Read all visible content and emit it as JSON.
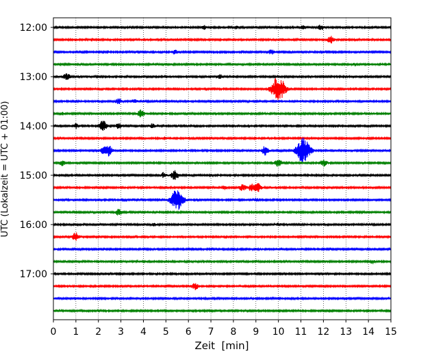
{
  "chart_data": {
    "type": "line",
    "title": "",
    "xlabel": "Zeit  [min]",
    "ylabel": "UTC (Lokalzeit = UTC + 01:00)",
    "xlim": [
      0,
      15
    ],
    "x_ticks": [
      "0",
      "1",
      "2",
      "3",
      "4",
      "5",
      "6",
      "7",
      "8",
      "9",
      "10",
      "11",
      "12",
      "13",
      "14",
      "15"
    ],
    "y_tick_labels": [
      "12:00",
      "13:00",
      "14:00",
      "15:00",
      "16:00",
      "17:00"
    ],
    "grid": "vertical dotted at each minute",
    "colors": [
      "#000000",
      "#ff0000",
      "#0000ff",
      "#008000"
    ],
    "traces": [
      {
        "start": "12:00",
        "color": "#000000",
        "events": [
          [
            6.7,
            0.4
          ],
          [
            8.1,
            0.35
          ],
          [
            11.1,
            0.5
          ],
          [
            11.9,
            0.7
          ]
        ]
      },
      {
        "start": "12:15",
        "color": "#ff0000",
        "events": [
          [
            1.7,
            0.3
          ],
          [
            12.3,
            0.9
          ]
        ]
      },
      {
        "start": "12:30",
        "color": "#0000ff",
        "events": [
          [
            5.4,
            0.5
          ],
          [
            9.7,
            0.6
          ]
        ]
      },
      {
        "start": "12:45",
        "color": "#008000",
        "events": [
          [
            13.4,
            0.3
          ]
        ]
      },
      {
        "start": "13:00",
        "color": "#000000",
        "events": [
          [
            0.6,
            0.8
          ],
          [
            7.4,
            0.5
          ]
        ]
      },
      {
        "start": "13:15",
        "color": "#ff0000",
        "events": [
          [
            10.0,
            3.0
          ]
        ]
      },
      {
        "start": "13:30",
        "color": "#0000ff",
        "events": [
          [
            2.9,
            0.7
          ],
          [
            3.6,
            0.4
          ]
        ]
      },
      {
        "start": "13:45",
        "color": "#008000",
        "events": [
          [
            3.9,
            0.9
          ],
          [
            0.4,
            0.3
          ]
        ]
      },
      {
        "start": "14:00",
        "color": "#000000",
        "events": [
          [
            1.0,
            0.6
          ],
          [
            2.2,
            1.2
          ],
          [
            2.9,
            0.6
          ],
          [
            4.4,
            0.5
          ]
        ]
      },
      {
        "start": "14:15",
        "color": "#ff0000",
        "events": [
          [
            4.9,
            0.3
          ]
        ]
      },
      {
        "start": "14:30",
        "color": "#0000ff",
        "events": [
          [
            2.3,
            1.2
          ],
          [
            2.5,
            0.8
          ],
          [
            9.4,
            1.0
          ],
          [
            11.1,
            3.0
          ]
        ]
      },
      {
        "start": "14:45",
        "color": "#008000",
        "events": [
          [
            0.4,
            0.6
          ],
          [
            10.0,
            0.9
          ],
          [
            12.0,
            0.8
          ]
        ]
      },
      {
        "start": "15:00",
        "color": "#000000",
        "events": [
          [
            5.4,
            1.1
          ],
          [
            4.9,
            0.6
          ]
        ]
      },
      {
        "start": "15:15",
        "color": "#ff0000",
        "events": [
          [
            7.6,
            0.6
          ],
          [
            8.4,
            0.8
          ],
          [
            8.8,
            0.8
          ],
          [
            9.1,
            1.0
          ]
        ]
      },
      {
        "start": "15:30",
        "color": "#0000ff",
        "events": [
          [
            5.5,
            2.6
          ],
          [
            9.0,
            0.4
          ]
        ]
      },
      {
        "start": "15:45",
        "color": "#008000",
        "events": [
          [
            2.9,
            0.7
          ]
        ]
      },
      {
        "start": "16:00",
        "color": "#000000",
        "events": [
          [
            4.5,
            0.3
          ],
          [
            10.0,
            0.3
          ]
        ]
      },
      {
        "start": "16:15",
        "color": "#ff0000",
        "events": [
          [
            1.0,
            1.0
          ]
        ]
      },
      {
        "start": "16:30",
        "color": "#0000ff",
        "events": []
      },
      {
        "start": "16:45",
        "color": "#008000",
        "events": [
          [
            14.2,
            0.5
          ]
        ]
      },
      {
        "start": "17:00",
        "color": "#000000",
        "events": []
      },
      {
        "start": "17:15",
        "color": "#ff0000",
        "events": [
          [
            6.3,
            0.8
          ]
        ]
      },
      {
        "start": "17:30",
        "color": "#0000ff",
        "events": []
      },
      {
        "start": "17:45",
        "color": "#008000",
        "events": []
      }
    ]
  }
}
